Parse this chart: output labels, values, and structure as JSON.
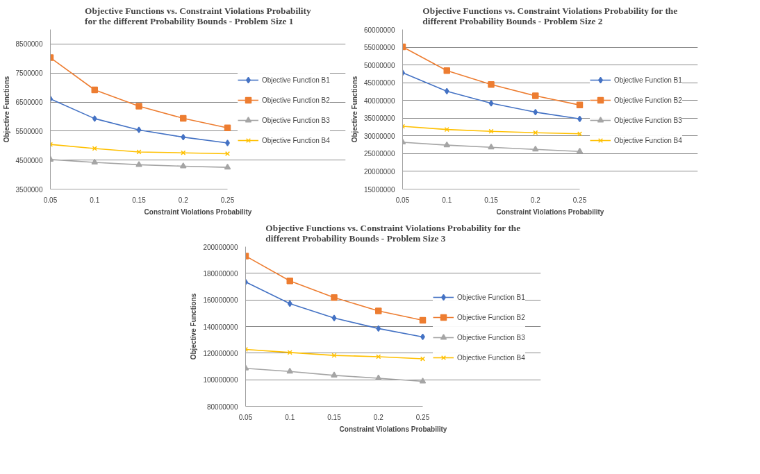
{
  "chart_data": [
    {
      "type": "line",
      "title": "Objective Functions vs. Constraint Violations Probability for the different Probability Bounds - Problem Size 1",
      "xlabel": "Constraint Violations Probability",
      "ylabel": "Objective Functions",
      "categories": [
        "0.05",
        "0.1",
        "0.15",
        "0.2",
        "0.25"
      ],
      "ylim": [
        3500000,
        9000000
      ],
      "yticks": [
        3500000,
        4500000,
        5500000,
        6500000,
        7500000,
        8500000
      ],
      "grid": "y",
      "legend": "right",
      "series": [
        {
          "name": "Objective Function B1",
          "color": "#4472c4",
          "marker": "diamond",
          "values": [
            6610000,
            5930000,
            5540000,
            5290000,
            5090000
          ]
        },
        {
          "name": "Objective Function B2",
          "color": "#ed7d31",
          "marker": "square",
          "values": [
            8030000,
            6920000,
            6360000,
            5940000,
            5610000
          ]
        },
        {
          "name": "Objective Function B3",
          "color": "#a5a5a5",
          "marker": "triangle",
          "values": [
            4520000,
            4420000,
            4340000,
            4290000,
            4250000
          ]
        },
        {
          "name": "Objective Function B4",
          "color": "#ffc000",
          "marker": "cross",
          "values": [
            5040000,
            4900000,
            4780000,
            4750000,
            4720000
          ]
        }
      ]
    },
    {
      "type": "line",
      "title": "Objective Functions vs. Constraint Violations Probability for the different Probability Bounds - Problem Size 2",
      "xlabel": "Constraint Violations Probability",
      "ylabel": "Objective Functions",
      "categories": [
        "0.05",
        "0.1",
        "0.15",
        "0.2",
        "0.25"
      ],
      "ylim": [
        15000000,
        60000000
      ],
      "yticks": [
        15000000,
        20000000,
        25000000,
        30000000,
        35000000,
        40000000,
        45000000,
        50000000,
        55000000,
        60000000
      ],
      "grid": "y",
      "legend": "right",
      "series": [
        {
          "name": "Objective Function B1",
          "color": "#4472c4",
          "marker": "diamond",
          "values": [
            47800000,
            42600000,
            39200000,
            36700000,
            34800000
          ]
        },
        {
          "name": "Objective Function B2",
          "color": "#ed7d31",
          "marker": "square",
          "values": [
            55100000,
            48400000,
            44500000,
            41300000,
            38700000
          ]
        },
        {
          "name": "Objective Function B3",
          "color": "#a5a5a5",
          "marker": "triangle",
          "values": [
            28200000,
            27400000,
            26800000,
            26200000,
            25600000
          ]
        },
        {
          "name": "Objective Function B4",
          "color": "#ffc000",
          "marker": "cross",
          "values": [
            32700000,
            31800000,
            31300000,
            30900000,
            30600000
          ]
        }
      ]
    },
    {
      "type": "line",
      "title": "Objective Functions vs. Constraint Violations Probability for the different Probability Bounds - Problem Size 3",
      "xlabel": "Constraint Violations Probability",
      "ylabel": "Objective Functions",
      "categories": [
        "0.05",
        "0.1",
        "0.15",
        "0.2",
        "0.25"
      ],
      "ylim": [
        80000000,
        200000000
      ],
      "yticks": [
        80000000,
        100000000,
        120000000,
        140000000,
        160000000,
        180000000,
        200000000
      ],
      "grid": "y",
      "legend": "right",
      "series": [
        {
          "name": "Objective Function B1",
          "color": "#4472c4",
          "marker": "diamond",
          "values": [
            173500000,
            157200000,
            146400000,
            138500000,
            132200000
          ]
        },
        {
          "name": "Objective Function B2",
          "color": "#ed7d31",
          "marker": "square",
          "values": [
            193000000,
            174300000,
            161800000,
            151700000,
            144700000
          ]
        },
        {
          "name": "Objective Function B3",
          "color": "#a5a5a5",
          "marker": "triangle",
          "values": [
            108600000,
            106200000,
            103300000,
            101100000,
            98800000
          ]
        },
        {
          "name": "Objective Function B4",
          "color": "#ffc000",
          "marker": "cross",
          "values": [
            122800000,
            120500000,
            118300000,
            117300000,
            115700000
          ]
        }
      ]
    }
  ]
}
